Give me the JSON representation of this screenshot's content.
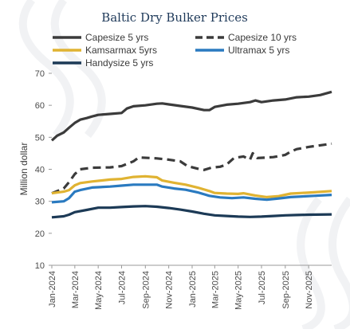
{
  "chart_data": {
    "type": "line",
    "title": "Baltic Dry Bulker Prices",
    "ylabel": "Million dollar",
    "xlabel": "",
    "ylim": [
      10,
      70
    ],
    "yticks": [
      10,
      20,
      30,
      40,
      50,
      60,
      70
    ],
    "grid": false,
    "legend_position": "top",
    "x_ticks": [
      "Jan-2024",
      "Mar-2024",
      "May-2024",
      "Jul-2024",
      "Sep-2024",
      "Nov-2024",
      "Jan-2025",
      "Mar-2025",
      "May-2025",
      "Jul-2025",
      "Sep-2025",
      "Nov-2025"
    ],
    "x_range": [
      "2024-01-01",
      "2025-12-31"
    ],
    "series": [
      {
        "name": "Capesize 5 yrs",
        "color": "#3b3b3b",
        "dash": "solid",
        "points": [
          [
            "2024-01-01",
            49
          ],
          [
            "2024-01-15",
            50.5
          ],
          [
            "2024-02-01",
            51.5
          ],
          [
            "2024-02-15",
            53
          ],
          [
            "2024-03-01",
            54.5
          ],
          [
            "2024-03-15",
            55.5
          ],
          [
            "2024-04-01",
            56
          ],
          [
            "2024-04-15",
            56.5
          ],
          [
            "2024-05-01",
            57
          ],
          [
            "2024-06-01",
            57.3
          ],
          [
            "2024-07-01",
            57.6
          ],
          [
            "2024-07-15",
            59
          ],
          [
            "2024-08-01",
            59.7
          ],
          [
            "2024-09-01",
            60
          ],
          [
            "2024-10-01",
            60.5
          ],
          [
            "2024-10-15",
            60.6
          ],
          [
            "2024-11-01",
            60.3
          ],
          [
            "2024-12-01",
            59.8
          ],
          [
            "2025-01-01",
            59.3
          ],
          [
            "2025-02-01",
            58.5
          ],
          [
            "2025-02-15",
            58.5
          ],
          [
            "2025-03-01",
            59.5
          ],
          [
            "2025-04-01",
            60.2
          ],
          [
            "2025-05-01",
            60.5
          ],
          [
            "2025-06-01",
            61
          ],
          [
            "2025-06-15",
            61.5
          ],
          [
            "2025-07-01",
            61
          ],
          [
            "2025-08-01",
            61.5
          ],
          [
            "2025-09-01",
            61.8
          ],
          [
            "2025-10-01",
            62.5
          ],
          [
            "2025-11-01",
            62.7
          ],
          [
            "2025-12-01",
            63.2
          ],
          [
            "2025-12-31",
            64.2
          ]
        ]
      },
      {
        "name": "Capesize 10 yrs",
        "color": "#3b3b3b",
        "dash": "dashed",
        "points": [
          [
            "2024-01-01",
            32.5
          ],
          [
            "2024-02-01",
            34
          ],
          [
            "2024-02-15",
            36
          ],
          [
            "2024-03-01",
            38.5
          ],
          [
            "2024-03-15",
            40
          ],
          [
            "2024-04-15",
            40.5
          ],
          [
            "2024-06-01",
            40.6
          ],
          [
            "2024-07-01",
            41
          ],
          [
            "2024-08-01",
            42.5
          ],
          [
            "2024-08-15",
            43.7
          ],
          [
            "2024-10-01",
            43.4
          ],
          [
            "2024-11-01",
            43
          ],
          [
            "2024-12-01",
            42.5
          ],
          [
            "2024-12-20",
            41
          ],
          [
            "2025-01-15",
            40.2
          ],
          [
            "2025-02-01",
            39.8
          ],
          [
            "2025-02-20",
            40.5
          ],
          [
            "2025-03-15",
            40.8
          ],
          [
            "2025-04-01",
            41.5
          ],
          [
            "2025-04-20",
            43.5
          ],
          [
            "2025-05-15",
            44
          ],
          [
            "2025-06-01",
            43
          ],
          [
            "2025-06-08",
            45
          ],
          [
            "2025-06-20",
            43.5
          ],
          [
            "2025-08-01",
            43.8
          ],
          [
            "2025-09-01",
            44.5
          ],
          [
            "2025-09-15",
            45.5
          ],
          [
            "2025-10-01",
            46.3
          ],
          [
            "2025-11-01",
            47
          ],
          [
            "2025-12-01",
            47.5
          ],
          [
            "2025-12-31",
            48
          ]
        ]
      },
      {
        "name": "Kamsarmax 5yrs",
        "color": "#e0b332",
        "dash": "solid",
        "points": [
          [
            "2024-01-01",
            32.5
          ],
          [
            "2024-02-01",
            33
          ],
          [
            "2024-02-15",
            33.5
          ],
          [
            "2024-03-01",
            35
          ],
          [
            "2024-03-15",
            35.7
          ],
          [
            "2024-04-15",
            36.2
          ],
          [
            "2024-06-01",
            36.8
          ],
          [
            "2024-07-01",
            37
          ],
          [
            "2024-08-01",
            37.6
          ],
          [
            "2024-09-01",
            37.8
          ],
          [
            "2024-10-01",
            37.5
          ],
          [
            "2024-10-15",
            36.5
          ],
          [
            "2024-11-15",
            35.8
          ],
          [
            "2024-12-15",
            35.2
          ],
          [
            "2025-01-15",
            34.3
          ],
          [
            "2025-02-15",
            33.2
          ],
          [
            "2025-03-01",
            32.6
          ],
          [
            "2025-04-01",
            32.4
          ],
          [
            "2025-05-01",
            32.3
          ],
          [
            "2025-05-15",
            32.5
          ],
          [
            "2025-06-15",
            31.8
          ],
          [
            "2025-07-15",
            31.3
          ],
          [
            "2025-08-15",
            31.6
          ],
          [
            "2025-09-15",
            32.4
          ],
          [
            "2025-10-15",
            32.6
          ],
          [
            "2025-11-15",
            32.8
          ],
          [
            "2025-12-31",
            33.2
          ]
        ]
      },
      {
        "name": "Ultramax 5 yrs",
        "color": "#2a7ac0",
        "dash": "solid",
        "points": [
          [
            "2024-01-01",
            29.7
          ],
          [
            "2024-02-01",
            30
          ],
          [
            "2024-02-15",
            31
          ],
          [
            "2024-03-01",
            33
          ],
          [
            "2024-03-15",
            33.5
          ],
          [
            "2024-04-15",
            34.3
          ],
          [
            "2024-06-01",
            34.6
          ],
          [
            "2024-07-01",
            34.9
          ],
          [
            "2024-08-01",
            35.2
          ],
          [
            "2024-10-01",
            35.2
          ],
          [
            "2024-10-15",
            34.6
          ],
          [
            "2024-11-15",
            34
          ],
          [
            "2024-12-15",
            33.6
          ],
          [
            "2025-01-15",
            32.8
          ],
          [
            "2025-02-15",
            31.7
          ],
          [
            "2025-03-15",
            31.2
          ],
          [
            "2025-04-15",
            31
          ],
          [
            "2025-05-15",
            31.2
          ],
          [
            "2025-06-15",
            30.8
          ],
          [
            "2025-07-15",
            30.5
          ],
          [
            "2025-08-15",
            30.9
          ],
          [
            "2025-09-15",
            31.3
          ],
          [
            "2025-10-15",
            31.5
          ],
          [
            "2025-11-15",
            31.7
          ],
          [
            "2025-12-31",
            32
          ]
        ]
      },
      {
        "name": "Handysize 5 yrs",
        "color": "#1c3a56",
        "dash": "solid",
        "points": [
          [
            "2024-01-01",
            25
          ],
          [
            "2024-02-01",
            25.3
          ],
          [
            "2024-02-15",
            25.8
          ],
          [
            "2024-03-01",
            26.6
          ],
          [
            "2024-04-01",
            27.3
          ],
          [
            "2024-05-01",
            28
          ],
          [
            "2024-06-01",
            28
          ],
          [
            "2024-07-01",
            28.2
          ],
          [
            "2024-08-01",
            28.4
          ],
          [
            "2024-09-01",
            28.5
          ],
          [
            "2024-10-01",
            28.3
          ],
          [
            "2024-11-01",
            27.9
          ],
          [
            "2024-12-01",
            27.4
          ],
          [
            "2025-01-01",
            26.8
          ],
          [
            "2025-02-01",
            26.1
          ],
          [
            "2025-03-01",
            25.6
          ],
          [
            "2025-04-01",
            25.4
          ],
          [
            "2025-05-01",
            25.2
          ],
          [
            "2025-06-01",
            25.1
          ],
          [
            "2025-07-01",
            25.2
          ],
          [
            "2025-08-01",
            25.4
          ],
          [
            "2025-09-01",
            25.6
          ],
          [
            "2025-10-01",
            25.7
          ],
          [
            "2025-11-01",
            25.8
          ],
          [
            "2025-12-31",
            25.9
          ]
        ]
      }
    ]
  }
}
